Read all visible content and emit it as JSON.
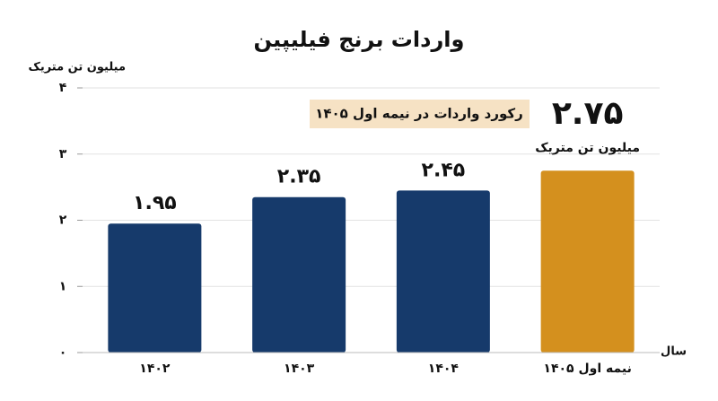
{
  "chart_data": {
    "type": "bar",
    "title": "واردات برنج فیلیپین",
    "y_label": "میلیون تن متریک",
    "x_label": "سال",
    "annotation": "رکورد واردات در نیمه اول ۱۴۰۵",
    "highlight_unit": "میلیون تن متریک",
    "categories": [
      "۱۴۰۲",
      "۱۴۰۳",
      "۱۴۰۴",
      "نیمه اول ۱۴۰۵"
    ],
    "values": [
      1.95,
      2.35,
      2.45,
      2.75
    ],
    "value_labels": [
      "۱.۹۵",
      "۲.۳۵",
      "۲.۴۵",
      "۲.۷۵"
    ],
    "colors": [
      "#163a6b",
      "#163a6b",
      "#163a6b",
      "#d4901e"
    ],
    "ylim": [
      0,
      4
    ],
    "yticks": [
      {
        "value": 0,
        "label": "۰"
      },
      {
        "value": 1,
        "label": "۱"
      },
      {
        "value": 2,
        "label": "۲"
      },
      {
        "value": 3,
        "label": "۳"
      },
      {
        "value": 4,
        "label": "۴"
      }
    ],
    "grid": true
  }
}
